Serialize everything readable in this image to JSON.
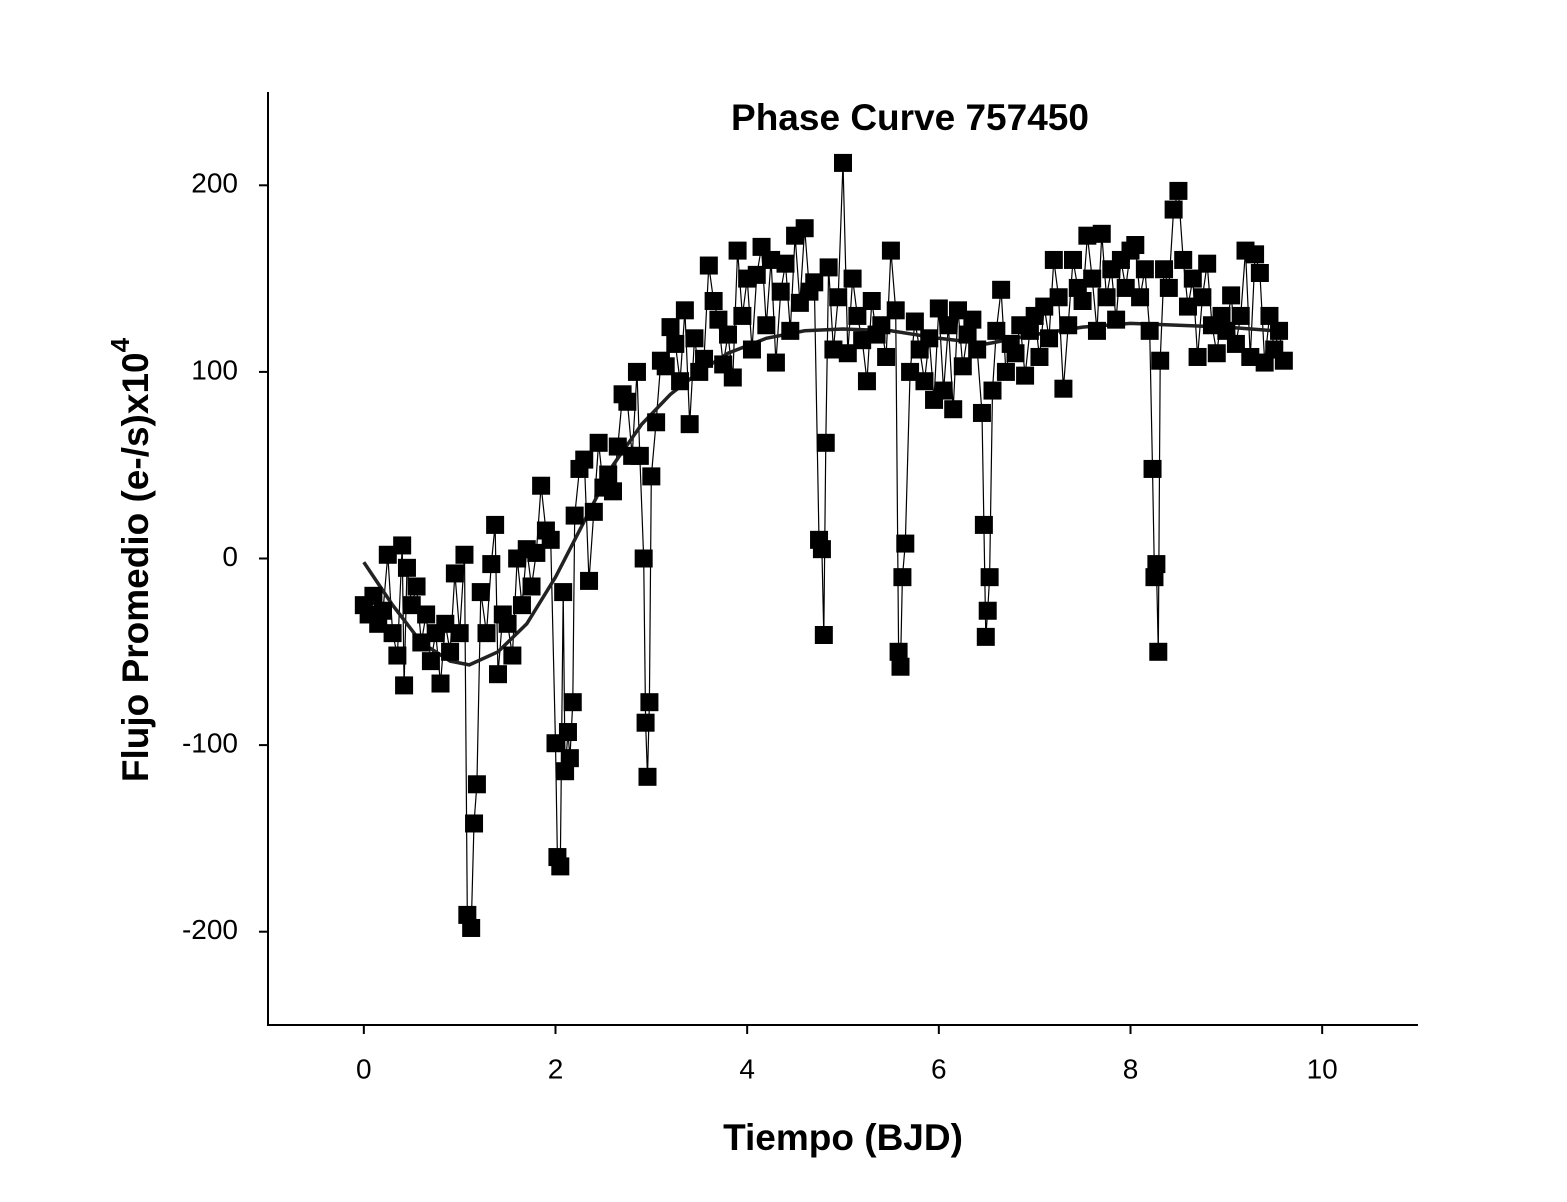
{
  "chart_data": {
    "type": "scatter",
    "title": "Phase Curve 757450",
    "x_label": "Tiempo (BJD)",
    "y_label": "Flujo Promedio (e-/s)x10",
    "y_label_sup": "4",
    "xlim": [
      -1,
      11
    ],
    "xticks": [
      0,
      2,
      4,
      6,
      8,
      10
    ],
    "ylim": [
      -250,
      250
    ],
    "yticks": [
      -200,
      -100,
      0,
      100,
      200
    ],
    "grid": false,
    "series": [
      {
        "color": "#000000",
        "marker": "square",
        "connect": true,
        "x": [
          0.0,
          0.05,
          0.1,
          0.15,
          0.2,
          0.25,
          0.3,
          0.35,
          0.4,
          0.42,
          0.45,
          0.5,
          0.55,
          0.6,
          0.65,
          0.7,
          0.75,
          0.8,
          0.85,
          0.9,
          0.95,
          1.0,
          1.05,
          1.08,
          1.12,
          1.15,
          1.18,
          1.22,
          1.28,
          1.33,
          1.37,
          1.4,
          1.45,
          1.5,
          1.55,
          1.6,
          1.65,
          1.7,
          1.75,
          1.8,
          1.85,
          1.9,
          1.95,
          2.0,
          2.02,
          2.05,
          2.08,
          2.1,
          2.13,
          2.15,
          2.18,
          2.2,
          2.25,
          2.3,
          2.35,
          2.4,
          2.45,
          2.5,
          2.55,
          2.6,
          2.65,
          2.7,
          2.75,
          2.8,
          2.85,
          2.88,
          2.92,
          2.94,
          2.96,
          2.98,
          3.0,
          3.05,
          3.1,
          3.15,
          3.2,
          3.25,
          3.3,
          3.35,
          3.4,
          3.45,
          3.5,
          3.55,
          3.6,
          3.65,
          3.7,
          3.75,
          3.8,
          3.85,
          3.9,
          3.95,
          4.0,
          4.05,
          4.1,
          4.15,
          4.2,
          4.25,
          4.3,
          4.35,
          4.4,
          4.45,
          4.5,
          4.55,
          4.6,
          4.65,
          4.7,
          4.75,
          4.78,
          4.8,
          4.82,
          4.85,
          4.9,
          4.95,
          5.0,
          5.05,
          5.1,
          5.15,
          5.2,
          5.25,
          5.3,
          5.35,
          5.4,
          5.45,
          5.5,
          5.55,
          5.58,
          5.6,
          5.62,
          5.65,
          5.7,
          5.75,
          5.8,
          5.85,
          5.9,
          5.95,
          6.0,
          6.05,
          6.1,
          6.15,
          6.2,
          6.25,
          6.3,
          6.35,
          6.4,
          6.45,
          6.47,
          6.49,
          6.51,
          6.53,
          6.56,
          6.6,
          6.65,
          6.7,
          6.75,
          6.8,
          6.85,
          6.9,
          6.95,
          7.0,
          7.05,
          7.1,
          7.15,
          7.2,
          7.25,
          7.3,
          7.35,
          7.4,
          7.45,
          7.5,
          7.55,
          7.6,
          7.65,
          7.7,
          7.75,
          7.8,
          7.85,
          7.9,
          7.95,
          8.0,
          8.05,
          8.1,
          8.15,
          8.2,
          8.23,
          8.25,
          8.27,
          8.29,
          8.31,
          8.35,
          8.4,
          8.45,
          8.5,
          8.55,
          8.6,
          8.65,
          8.7,
          8.75,
          8.8,
          8.85,
          8.9,
          8.95,
          9.0,
          9.05,
          9.1,
          9.15,
          9.2,
          9.25,
          9.3,
          9.35,
          9.4,
          9.45,
          9.5,
          9.55,
          9.6
        ],
        "values": [
          -25,
          -30,
          -20,
          -35,
          -28,
          2,
          -40,
          -52,
          7,
          -68,
          -5,
          -25,
          -15,
          -45,
          -30,
          -55,
          -40,
          -67,
          -35,
          -50,
          -8,
          -40,
          2,
          -191,
          -198,
          -142,
          -121,
          -18,
          -40,
          -3,
          18,
          -62,
          -30,
          -35,
          -52,
          0,
          -25,
          5,
          -15,
          3,
          39,
          15,
          10,
          -99,
          -160,
          -165,
          -18,
          -114,
          -93,
          -107,
          -77,
          23,
          48,
          53,
          -12,
          25,
          62,
          38,
          45,
          36,
          60,
          88,
          84,
          55,
          100,
          55,
          0,
          -88,
          -117,
          -77,
          44,
          73,
          106,
          103,
          124,
          115,
          95,
          133,
          72,
          118,
          100,
          107,
          157,
          138,
          128,
          104,
          120,
          97,
          165,
          130,
          150,
          112,
          152,
          167,
          125,
          160,
          105,
          143,
          158,
          122,
          173,
          137,
          177,
          143,
          148,
          10,
          5,
          -41,
          62,
          156,
          112,
          140,
          212,
          110,
          150,
          130,
          117,
          95,
          138,
          120,
          125,
          108,
          165,
          133,
          -50,
          -58,
          -10,
          8,
          100,
          127,
          112,
          95,
          118,
          85,
          134,
          90,
          125,
          80,
          133,
          103,
          120,
          128,
          112,
          78,
          18,
          -42,
          -28,
          -10,
          90,
          122,
          144,
          100,
          115,
          110,
          125,
          98,
          122,
          130,
          108,
          135,
          118,
          160,
          140,
          91,
          125,
          160,
          145,
          138,
          173,
          150,
          122,
          174,
          140,
          155,
          128,
          160,
          145,
          165,
          168,
          140,
          155,
          122,
          48,
          -10,
          -3,
          -50,
          106,
          155,
          145,
          187,
          197,
          160,
          135,
          150,
          108,
          140,
          158,
          125,
          110,
          130,
          122,
          141,
          115,
          130,
          165,
          108,
          163,
          153,
          105,
          130,
          112,
          122,
          106
        ]
      },
      {
        "color": "#222222",
        "marker": "none",
        "connect": true,
        "x": [
          0,
          0.3,
          0.6,
          0.9,
          1.1,
          1.4,
          1.7,
          2.0,
          2.3,
          2.6,
          2.9,
          3.2,
          3.5,
          3.8,
          4.2,
          4.6,
          5.0,
          5.5,
          6.0,
          6.5,
          7.0,
          7.5,
          8.0,
          8.5,
          9.0,
          9.5
        ],
        "values": [
          -2,
          -25,
          -45,
          -55,
          -57,
          -50,
          -35,
          -10,
          20,
          50,
          72,
          88,
          100,
          110,
          118,
          122,
          123,
          122,
          118,
          115,
          120,
          124,
          126,
          125,
          124,
          122
        ]
      }
    ]
  }
}
